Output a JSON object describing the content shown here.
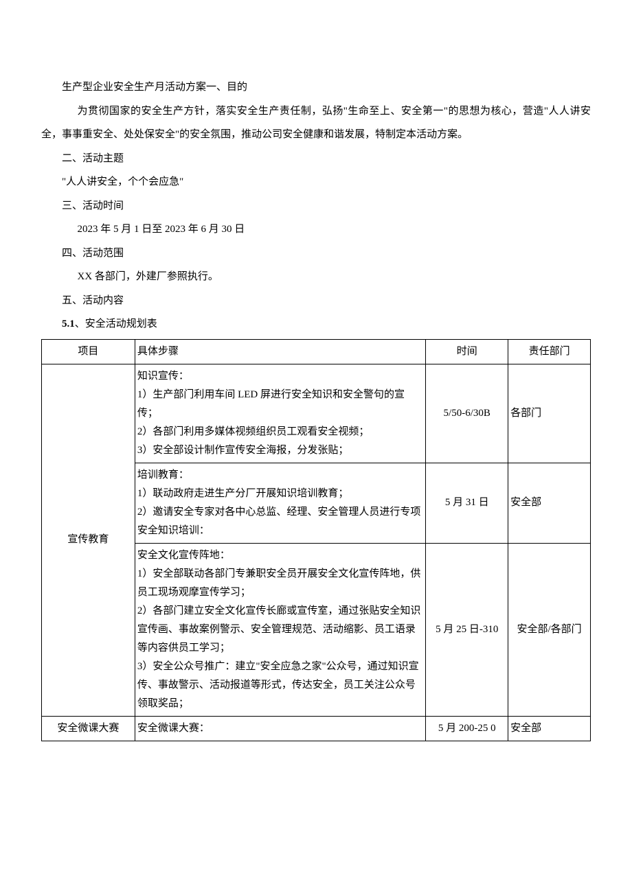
{
  "document": {
    "title": "生产型企业安全生产月活动方案一、目的",
    "intro_para": "为贯彻国家的安全生产方针，落实安全生产责任制，弘扬\"生命至上、安全第一\"的思想为核心，营造\"人人讲安全，事事重安全、处处保安全\"的安全氛围，推动公司安全健康和谐发展，特制定本活动方案。",
    "section2_header": "二、活动主题",
    "section2_content": "\"人人讲安全，个个会应急\"",
    "section3_header": "三、活动时间",
    "section3_content": "2023 年 5 月 1 日至 2023 年 6 月 30 日",
    "section4_header": "四、活动范围",
    "section4_content": "XX 各部门，外建厂参照执行。",
    "section5_header": "五、活动内容",
    "section51_bold": "5.1",
    "section51_rest": "、安全活动规划表"
  },
  "table": {
    "headers": {
      "project": "项目",
      "steps": "具体步骤",
      "time": "时间",
      "dept": "责任部门"
    },
    "rows": [
      {
        "project": "宣传教育",
        "rowspan": 3,
        "sub": [
          {
            "steps_title": "知识宣传：",
            "steps_items": [
              "1）生产部门利用车间 LED 屏进行安全知识和安全警句的宣传；",
              "2）各部门利用多媒体视频组织员工观看安全视频；",
              "3）安全部设计制作宣传安全海报，分发张贴；"
            ],
            "time": "5/50-6/30B",
            "dept": "各部门"
          },
          {
            "steps_title": "培训教育：",
            "steps_items": [
              "1）联动政府走进生产分厂开展知识培训教育；",
              "2）邀请安全专家对各中心总监、经理、安全管理人员进行专项安全知识培训："
            ],
            "time": "5 月 31 日",
            "dept": "安全部"
          },
          {
            "steps_title": "安全文化宣传阵地：",
            "steps_items": [
              "1）安全部联动各部门专兼职安全员开展安全文化宣传阵地，供员工现场观摩宣传学习；",
              "2）各部门建立安全文化宣传长廊或宣传室，通过张贴安全知识宣传画、事故案例警示、安全管理规范、活动缩影、员工语录等内容供员工学习；",
              "3）安全公众号推广：建立\"安全应急之家\"公众号，通过知识宣传、事故警示、活动报道等形式，传达安全，员工关注公众号领取奖品；"
            ],
            "time": "5 月 25 日-310",
            "dept": "安全部/各部门",
            "dept_center": true
          }
        ]
      },
      {
        "project": "安全微课大赛",
        "rowspan": 1,
        "sub": [
          {
            "steps_title": "安全微课大赛：",
            "steps_items": [],
            "time": "5 月 200-25 0",
            "dept": "安全部"
          }
        ]
      }
    ]
  },
  "style": {
    "text_color": "#000000",
    "background_color": "#ffffff",
    "border_color": "#000000",
    "body_fontsize": 15,
    "line_height": 2.3
  }
}
